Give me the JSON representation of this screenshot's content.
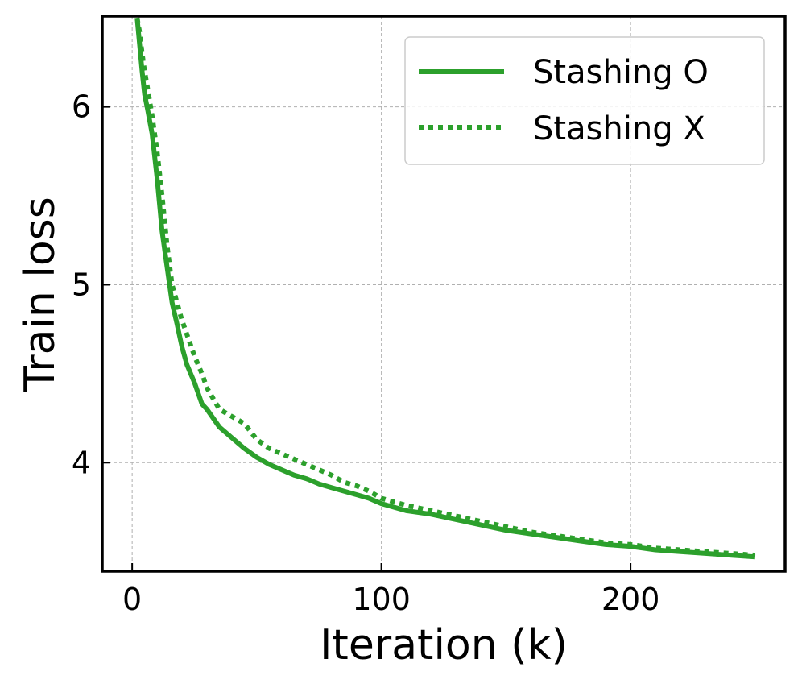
{
  "chart_data": {
    "type": "line",
    "title": "",
    "xlabel": "Iteration (k)",
    "ylabel": "Train loss",
    "xlim": [
      -12,
      262
    ],
    "ylim": [
      3.39,
      6.51
    ],
    "xticks": [
      0,
      100,
      200
    ],
    "xtick_labels": [
      "0",
      "100",
      "200"
    ],
    "yticks": [
      4,
      5,
      6
    ],
    "ytick_labels": [
      "4",
      "5",
      "6"
    ],
    "grid": true,
    "legend_position": "top-right",
    "series_color": "#2ca02c",
    "series": [
      {
        "name": "Stashing O",
        "style": "solid",
        "x": [
          2,
          3,
          4,
          5,
          6,
          8,
          10,
          12,
          14,
          16,
          18,
          20,
          22,
          25,
          28,
          30,
          35,
          40,
          45,
          50,
          55,
          60,
          65,
          70,
          75,
          80,
          85,
          90,
          95,
          100,
          110,
          120,
          130,
          140,
          150,
          160,
          170,
          180,
          190,
          200,
          210,
          220,
          230,
          240,
          250
        ],
        "values": [
          6.5,
          6.35,
          6.2,
          6.07,
          6.0,
          5.85,
          5.6,
          5.3,
          5.1,
          4.9,
          4.78,
          4.65,
          4.55,
          4.45,
          4.33,
          4.3,
          4.2,
          4.14,
          4.08,
          4.03,
          3.99,
          3.96,
          3.93,
          3.91,
          3.88,
          3.86,
          3.84,
          3.82,
          3.8,
          3.77,
          3.73,
          3.71,
          3.68,
          3.65,
          3.62,
          3.6,
          3.58,
          3.56,
          3.54,
          3.53,
          3.51,
          3.5,
          3.49,
          3.48,
          3.47
        ]
      },
      {
        "name": "Stashing X",
        "style": "dotted",
        "x": [
          2,
          3,
          4,
          5,
          6,
          8,
          10,
          12,
          14,
          16,
          18,
          20,
          22,
          25,
          28,
          30,
          35,
          40,
          45,
          50,
          55,
          60,
          65,
          70,
          75,
          80,
          85,
          90,
          95,
          100,
          110,
          120,
          130,
          140,
          150,
          160,
          170,
          180,
          190,
          200,
          210,
          220,
          230,
          240,
          250
        ],
        "values": [
          6.5,
          6.42,
          6.3,
          6.2,
          6.12,
          5.95,
          5.75,
          5.5,
          5.22,
          5.0,
          4.9,
          4.8,
          4.72,
          4.6,
          4.5,
          4.42,
          4.3,
          4.26,
          4.22,
          4.13,
          4.08,
          4.05,
          4.02,
          3.99,
          3.96,
          3.93,
          3.89,
          3.87,
          3.84,
          3.8,
          3.76,
          3.73,
          3.7,
          3.67,
          3.64,
          3.61,
          3.59,
          3.57,
          3.55,
          3.54,
          3.52,
          3.51,
          3.5,
          3.49,
          3.48
        ]
      }
    ]
  }
}
